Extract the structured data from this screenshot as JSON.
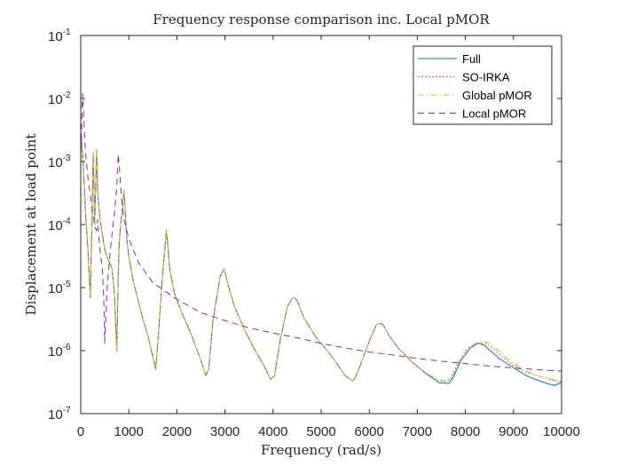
{
  "chart_data": {
    "type": "line",
    "title": "Frequency response comparison inc. Local pMOR",
    "xlabel": "Frequency (rad/s)",
    "ylabel": "Displacement at load point",
    "xlim": [
      0,
      10000
    ],
    "ylim": [
      1e-07,
      0.1
    ],
    "yscale": "log",
    "grid": false,
    "legend_position": "top-right",
    "x_ticks": [
      0,
      1000,
      2000,
      3000,
      4000,
      5000,
      6000,
      7000,
      8000,
      9000,
      10000
    ],
    "x_tick_labels": [
      "0",
      "1000",
      "2000",
      "3000",
      "4000",
      "5000",
      "6000",
      "7000",
      "8000",
      "9000",
      "10000"
    ],
    "y_ticks": [
      1e-07,
      1e-06,
      1e-05,
      0.0001,
      0.001,
      0.01,
      0.1
    ],
    "y_tick_exponents": [
      "-7",
      "-6",
      "-5",
      "-4",
      "-3",
      "-2",
      "-1"
    ],
    "y_tick_base": "10",
    "series": [
      {
        "name": "Full",
        "color": "#0072BD",
        "style": "solid",
        "x": [
          0,
          50,
          100,
          150,
          200,
          230,
          260,
          290,
          310,
          330,
          350,
          400,
          450,
          500,
          550,
          600,
          650,
          700,
          750,
          780,
          800,
          830,
          870,
          900,
          920,
          950,
          1000,
          1100,
          1200,
          1300,
          1400,
          1500,
          1560,
          1620,
          1700,
          1780,
          1800,
          1850,
          1950,
          2100,
          2300,
          2500,
          2600,
          2660,
          2750,
          2900,
          2980,
          3000,
          3050,
          3200,
          3400,
          3600,
          3800,
          3950,
          4030,
          4150,
          4300,
          4400,
          4450,
          4500,
          4650,
          4900,
          5200,
          5500,
          5650,
          5700,
          5800,
          6000,
          6150,
          6250,
          6300,
          6400,
          6600,
          6900,
          7200,
          7450,
          7650,
          7750,
          7900,
          8100,
          8250,
          8300,
          8400,
          8550,
          8700,
          8900,
          9100,
          9300,
          9500,
          9700,
          9850,
          9950,
          10000
        ],
        "y": [
          0.003,
          0.001,
          0.00015,
          4e-05,
          7e-06,
          8e-05,
          0.0014,
          0.0001,
          0.0004,
          0.0015,
          0.00035,
          0.00012,
          7e-05,
          4e-05,
          3e-05,
          2.5e-05,
          2e-05,
          8e-06,
          1e-06,
          1.5e-05,
          5e-05,
          0.0001,
          0.0002,
          0.00034,
          0.0002,
          7e-05,
          3e-05,
          1.2e-05,
          6e-06,
          3e-06,
          1.7e-06,
          8e-07,
          5e-07,
          2e-06,
          1.5e-05,
          8e-05,
          6e-05,
          2e-05,
          8e-06,
          4e-06,
          1.8e-06,
          7e-07,
          4e-07,
          5e-07,
          3e-06,
          1.5e-05,
          2e-05,
          1.8e-05,
          1.2e-05,
          5e-06,
          2.2e-06,
          1.1e-06,
          6e-07,
          3.5e-07,
          4e-07,
          1.5e-06,
          5e-06,
          6.8e-06,
          6.9e-06,
          6.2e-06,
          3.2e-06,
          1.6e-06,
          8.5e-07,
          4e-07,
          3.3e-07,
          3.6e-07,
          5.5e-07,
          1.4e-06,
          2.6e-06,
          2.7e-06,
          2.5e-06,
          1.8e-06,
          1.1e-06,
          6.5e-07,
          4.2e-07,
          3.1e-07,
          3e-07,
          3.8e-07,
          6.8e-07,
          1.1e-06,
          1.3e-06,
          1.3e-06,
          1.2e-06,
          9.5e-07,
          7.5e-07,
          6e-07,
          4.8e-07,
          3.9e-07,
          3.4e-07,
          3e-07,
          2.8e-07,
          3e-07,
          3.2e-07
        ]
      },
      {
        "name": "SO-IRKA",
        "color": "#D95319",
        "style": "dotted",
        "x": [
          0,
          50,
          100,
          150,
          200,
          230,
          260,
          290,
          310,
          330,
          350,
          400,
          450,
          500,
          550,
          600,
          650,
          700,
          750,
          780,
          800,
          830,
          870,
          900,
          920,
          950,
          1000,
          1100,
          1200,
          1300,
          1400,
          1500,
          1560,
          1620,
          1700,
          1780,
          1800,
          1850,
          1950,
          2100,
          2300,
          2500,
          2600,
          2660,
          2750,
          2900,
          2980,
          3000,
          3050,
          3200,
          3400,
          3600,
          3800,
          3950,
          4030,
          4150,
          4300,
          4400,
          4450,
          4500,
          4650,
          4900,
          5200,
          5500,
          5650,
          5700,
          5800,
          6000,
          6150,
          6250,
          6300,
          6400,
          6600,
          6900,
          7200,
          7450,
          7600,
          7700,
          7850,
          8050,
          8250,
          8400,
          8500,
          8650,
          8800,
          9000,
          9200,
          9400,
          9600,
          9800,
          10000
        ],
        "y": [
          0.003,
          0.001,
          0.00015,
          4e-05,
          7e-06,
          8e-05,
          0.0014,
          0.0001,
          0.0004,
          0.0015,
          0.00035,
          0.00012,
          7e-05,
          4e-05,
          3e-05,
          2.5e-05,
          2e-05,
          8e-06,
          1e-06,
          1.5e-05,
          5e-05,
          0.0001,
          0.0002,
          0.00034,
          0.0002,
          7e-05,
          3e-05,
          1.2e-05,
          6e-06,
          3e-06,
          1.7e-06,
          8e-07,
          5e-07,
          2e-06,
          1.5e-05,
          8e-05,
          6e-05,
          2e-05,
          8e-06,
          4e-06,
          1.8e-06,
          7e-07,
          4e-07,
          5e-07,
          3e-06,
          1.5e-05,
          2e-05,
          1.8e-05,
          1.2e-05,
          5e-06,
          2.2e-06,
          1.1e-06,
          6e-07,
          3.5e-07,
          4e-07,
          1.5e-06,
          5e-06,
          6.8e-06,
          6.9e-06,
          6.2e-06,
          3.2e-06,
          1.6e-06,
          8.5e-07,
          4e-07,
          3.3e-07,
          3.6e-07,
          5.5e-07,
          1.4e-06,
          2.6e-06,
          2.7e-06,
          2.5e-06,
          1.8e-06,
          1.1e-06,
          6.5e-07,
          4.3e-07,
          3.3e-07,
          3.2e-07,
          3.7e-07,
          6.5e-07,
          1.1e-06,
          1.3e-06,
          1.3e-06,
          1.2e-06,
          9.5e-07,
          7.5e-07,
          5.8e-07,
          4.7e-07,
          4.2e-07,
          3.8e-07,
          3.5e-07,
          3.2e-07
        ]
      },
      {
        "name": "Global pMOR",
        "color": "#EDB120",
        "style": "dashdot",
        "x": [
          0,
          50,
          100,
          150,
          200,
          230,
          260,
          290,
          310,
          330,
          350,
          400,
          450,
          500,
          550,
          600,
          650,
          700,
          750,
          780,
          800,
          830,
          870,
          900,
          920,
          950,
          1000,
          1100,
          1200,
          1300,
          1400,
          1500,
          1560,
          1620,
          1700,
          1780,
          1800,
          1850,
          1950,
          2100,
          2300,
          2500,
          2600,
          2660,
          2750,
          2900,
          2980,
          3000,
          3050,
          3200,
          3400,
          3600,
          3800,
          3950,
          4030,
          4150,
          4300,
          4400,
          4450,
          4500,
          4650,
          4900,
          5200,
          5500,
          5650,
          5700,
          5800,
          6000,
          6150,
          6250,
          6300,
          6400,
          6600,
          6900,
          7200,
          7450,
          7620,
          7750,
          7900,
          8100,
          8300,
          8400,
          8500,
          8650,
          8800,
          9000,
          9200,
          9400,
          9600,
          9800,
          10000
        ],
        "y": [
          0.003,
          0.001,
          0.00015,
          4e-05,
          7e-06,
          8e-05,
          0.0014,
          0.0001,
          0.0004,
          0.0016,
          0.00035,
          0.00012,
          7e-05,
          4e-05,
          3e-05,
          2.5e-05,
          2e-05,
          8e-06,
          1e-06,
          1.5e-05,
          5e-05,
          0.0001,
          0.0002,
          0.00034,
          0.0002,
          7e-05,
          3e-05,
          1.2e-05,
          6e-06,
          3e-06,
          1.7e-06,
          8e-07,
          5e-07,
          2e-06,
          1.5e-05,
          8e-05,
          6e-05,
          2e-05,
          8e-06,
          4e-06,
          1.8e-06,
          7e-07,
          4e-07,
          5e-07,
          3e-06,
          1.5e-05,
          2e-05,
          1.8e-05,
          1.2e-05,
          5e-06,
          2.2e-06,
          1.1e-06,
          6e-07,
          3.5e-07,
          4e-07,
          1.5e-06,
          5e-06,
          6.8e-06,
          6.9e-06,
          6.2e-06,
          3.2e-06,
          1.6e-06,
          8.5e-07,
          4e-07,
          3.3e-07,
          3.6e-07,
          5.5e-07,
          1.4e-06,
          2.6e-06,
          2.7e-06,
          2.5e-06,
          1.8e-06,
          1.1e-06,
          6.5e-07,
          4.3e-07,
          3.4e-07,
          3.3e-07,
          4.2e-07,
          7.5e-07,
          1.2e-06,
          1.4e-06,
          1.4e-06,
          1.3e-06,
          1.05e-06,
          8.2e-07,
          6.2e-07,
          5e-07,
          4.3e-07,
          3.8e-07,
          3.4e-07,
          3.1e-07
        ]
      },
      {
        "name": "Local pMOR",
        "color": "#7E2F8E",
        "style": "dashed",
        "x": [
          0,
          20,
          40,
          60,
          80,
          100,
          150,
          200,
          250,
          300,
          330,
          350,
          400,
          450,
          480,
          500,
          550,
          600,
          650,
          700,
          750,
          780,
          800,
          850,
          900,
          950,
          1000,
          1200,
          1500,
          2000,
          2500,
          3000,
          3500,
          4000,
          4500,
          5000,
          5500,
          6000,
          6500,
          7000,
          7500,
          8000,
          8500,
          9000,
          9500,
          10000
        ],
        "y": [
          0.001,
          0.004,
          0.012,
          0.006,
          0.0025,
          0.0014,
          0.00055,
          0.00028,
          0.00015,
          9e-05,
          8e-05,
          0.00012,
          4e-05,
          2e-05,
          6.5e-06,
          1.3e-06,
          1e-05,
          3e-05,
          7e-05,
          0.00015,
          0.0004,
          0.0013,
          0.0009,
          0.00025,
          0.00012,
          8.5e-05,
          6e-05,
          2.5e-05,
          1.2e-05,
          6.5e-06,
          4e-06,
          3e-06,
          2.3e-06,
          1.9e-06,
          1.6e-06,
          1.3e-06,
          1.1e-06,
          9.5e-07,
          8.5e-07,
          7.5e-07,
          6.8e-07,
          6.2e-07,
          5.7e-07,
          5.3e-07,
          5e-07,
          4.7e-07
        ]
      }
    ]
  }
}
